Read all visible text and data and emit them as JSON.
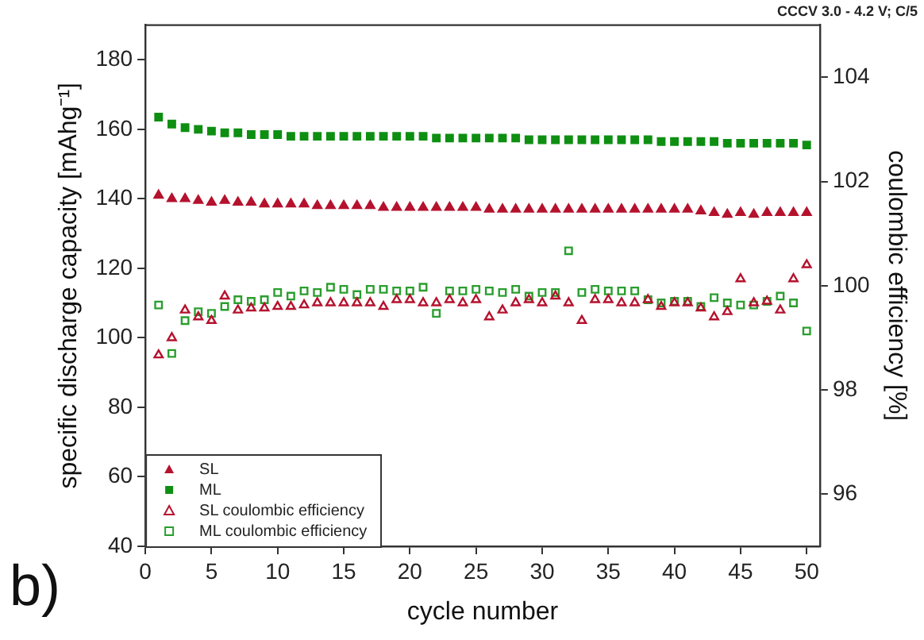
{
  "chart_data": {
    "type": "scatter",
    "title": "CCCV 3.0 - 4.2 V; C/5",
    "xlabel": "cycle number",
    "ylabel": "specific discharge capacity [mAhg⁻¹]",
    "y2label": "coulombic efficiency [%]",
    "annotations": [
      "b)"
    ],
    "x": [
      1,
      2,
      3,
      4,
      5,
      6,
      7,
      8,
      9,
      10,
      11,
      12,
      13,
      14,
      15,
      16,
      17,
      18,
      19,
      20,
      21,
      22,
      23,
      24,
      25,
      26,
      27,
      28,
      29,
      30,
      31,
      32,
      33,
      34,
      35,
      36,
      37,
      38,
      39,
      40,
      41,
      42,
      43,
      44,
      45,
      46,
      47,
      48,
      49,
      50
    ],
    "series": [
      {
        "name": "SL",
        "color": "#b5122e",
        "marker": "triangle",
        "values": [
          141,
          140,
          140,
          139.5,
          139,
          139.5,
          139,
          139,
          138.5,
          138.5,
          138.5,
          138.5,
          138,
          138,
          138,
          138,
          138,
          137.5,
          137.5,
          137.5,
          137.5,
          137.5,
          137.5,
          137.5,
          137.5,
          137,
          137,
          137,
          137,
          137,
          137,
          137,
          137,
          137,
          137,
          137,
          137,
          137,
          137,
          137,
          137,
          136.5,
          136,
          135.5,
          136,
          135.5,
          136,
          136,
          136,
          136
        ]
      },
      {
        "name": "ML",
        "color": "#0e8f12",
        "marker": "square",
        "values": [
          163.5,
          161.5,
          160.5,
          160,
          159.5,
          159,
          159,
          158.5,
          158.5,
          158.5,
          158,
          158,
          158,
          158,
          158,
          158,
          158,
          158,
          158,
          158,
          158,
          157.5,
          157.5,
          157.5,
          157.5,
          157.5,
          157.5,
          157.5,
          157,
          157,
          157,
          157,
          157,
          157,
          157,
          157,
          157,
          157,
          156.5,
          156.5,
          156.5,
          156.5,
          156.5,
          156,
          156,
          156,
          156,
          156,
          156,
          155.5
        ]
      },
      {
        "name": "SL coulombic efficiency",
        "color": "#b5122e",
        "marker": "triangle",
        "axis": "y2",
        "values": [
          98.67,
          99.0,
          99.53,
          99.4,
          99.33,
          99.8,
          99.53,
          99.57,
          99.57,
          99.6,
          99.6,
          99.63,
          99.67,
          99.67,
          99.67,
          99.67,
          99.67,
          99.6,
          99.73,
          99.73,
          99.67,
          99.67,
          99.73,
          99.67,
          99.73,
          99.4,
          99.53,
          99.67,
          99.73,
          99.67,
          99.8,
          99.67,
          99.33,
          99.73,
          99.73,
          99.67,
          99.67,
          99.73,
          99.6,
          99.67,
          99.67,
          99.57,
          99.4,
          99.5,
          100.13,
          99.67,
          99.7,
          99.53,
          100.13,
          100.4
        ]
      },
      {
        "name": "ML coulombic efficiency",
        "color": "#2a9e2e",
        "marker": "square",
        "axis": "y2",
        "values": [
          99.63,
          98.7,
          99.33,
          99.5,
          99.47,
          99.6,
          99.73,
          99.7,
          99.73,
          99.87,
          99.8,
          99.9,
          99.87,
          99.97,
          99.93,
          99.83,
          99.93,
          99.93,
          99.9,
          99.9,
          99.97,
          99.47,
          99.9,
          99.9,
          99.93,
          99.9,
          99.87,
          99.93,
          99.8,
          99.87,
          99.87,
          100.67,
          99.87,
          99.93,
          99.9,
          99.9,
          99.9,
          99.73,
          99.67,
          99.7,
          99.7,
          99.6,
          99.77,
          99.67,
          99.63,
          99.63,
          99.7,
          99.8,
          99.67,
          99.13
        ]
      }
    ],
    "xlim": [
      0,
      51
    ],
    "xticks": [
      0,
      5,
      10,
      15,
      20,
      25,
      30,
      35,
      40,
      45,
      50
    ],
    "ylim": [
      40,
      190
    ],
    "yticks": [
      40,
      60,
      80,
      100,
      120,
      140,
      160,
      180
    ],
    "y2lim": [
      95,
      105
    ],
    "y2ticks": [
      96,
      98,
      100,
      102,
      104
    ],
    "grid": false,
    "legend": "bottom left"
  }
}
